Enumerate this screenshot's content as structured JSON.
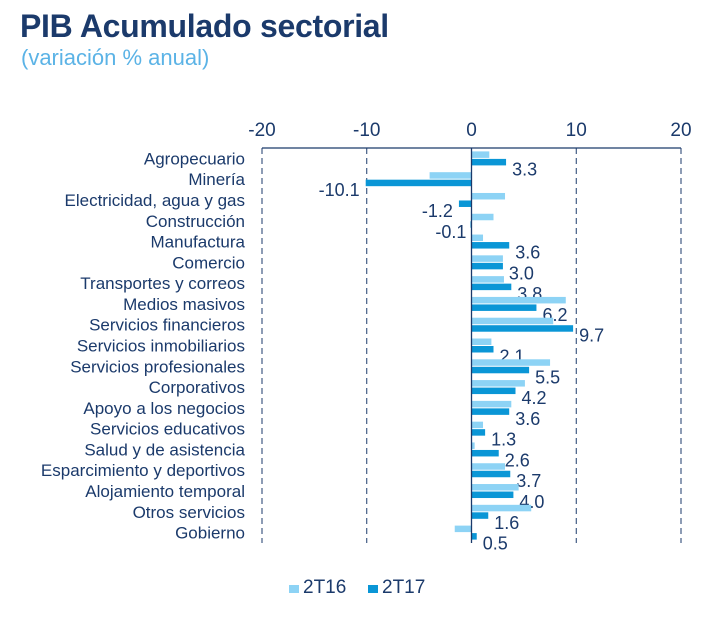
{
  "title": "PIB Acumulado sectorial",
  "subtitle": "(variación % anual)",
  "chart_data": {
    "type": "bar",
    "orientation": "horizontal",
    "categories": [
      "Agropecuario",
      "Minería",
      "Electricidad, agua y gas",
      "Construcción",
      "Manufactura",
      "Comercio",
      "Transportes y correos",
      "Medios masivos",
      "Servicios financieros",
      "Servicios inmobiliarios",
      "Servicios profesionales",
      "Corporativos",
      "Apoyo a los negocios",
      "Servicios educativos",
      "Salud y de asistencia",
      "Esparcimiento y deportivos",
      "Alojamiento temporal",
      "Otros servicios",
      "Gobierno"
    ],
    "series": [
      {
        "name": "2T16",
        "color": "#8dd3f5",
        "values": [
          1.7,
          -4.0,
          3.2,
          2.1,
          1.1,
          3.0,
          3.1,
          9.0,
          7.8,
          1.9,
          7.5,
          5.1,
          3.8,
          1.1,
          0.3,
          3.2,
          4.5,
          5.7,
          -1.6
        ]
      },
      {
        "name": "2T17",
        "color": "#0a96d6",
        "values": [
          3.3,
          -10.1,
          -1.2,
          -0.1,
          3.6,
          3.0,
          3.8,
          6.2,
          9.7,
          2.1,
          5.5,
          4.2,
          3.6,
          1.3,
          2.6,
          3.7,
          4.0,
          1.6,
          0.5
        ]
      }
    ],
    "data_labels": [
      "3.3",
      "-10.1",
      "-1.2",
      "-0.1",
      "3.6",
      "3.0",
      "3.8",
      "6.2",
      "9.7",
      "2.1",
      "5.5",
      "4.2",
      "3.6",
      "1.3",
      "2.6",
      "3.7",
      "4.0",
      "1.6",
      "0.5"
    ],
    "xlim": [
      -20,
      20
    ],
    "xticks": [
      "-20",
      "-10",
      "0",
      "10",
      "20"
    ],
    "xaxis_position": "top",
    "grid": "vertical dashed",
    "legend": {
      "position": "bottom-center",
      "entries": [
        "2T16",
        "2T17"
      ]
    }
  }
}
